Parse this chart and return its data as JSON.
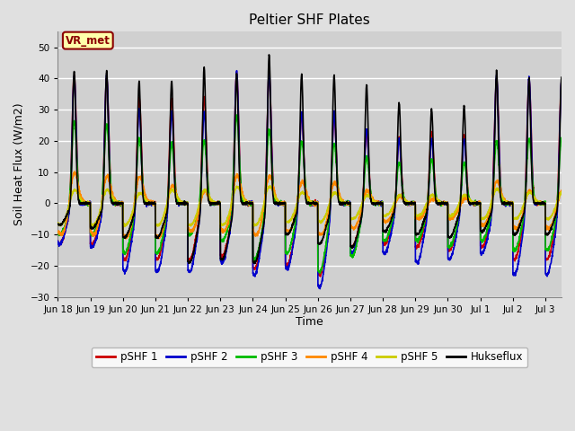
{
  "title": "Peltier SHF Plates",
  "xlabel": "Time",
  "ylabel": "Soil Heat Flux (W/m2)",
  "ylim": [
    -30,
    55
  ],
  "background_color": "#e0e0e0",
  "plot_bg_color": "#d0d0d0",
  "grid_color": "white",
  "vr_met_label": "VR_met",
  "series": {
    "pSHF 1": {
      "color": "#cc0000",
      "lw": 1.2
    },
    "pSHF 2": {
      "color": "#0000cc",
      "lw": 1.2
    },
    "pSHF 3": {
      "color": "#00bb00",
      "lw": 1.2
    },
    "pSHF 4": {
      "color": "#ff8800",
      "lw": 1.2
    },
    "pSHF 5": {
      "color": "#cccc00",
      "lw": 1.2
    },
    "Hukseflux": {
      "color": "#000000",
      "lw": 1.2
    }
  },
  "x_tick_labels": [
    "Jun 18",
    "Jun 19",
    "Jun 20",
    "Jun 21",
    "Jun 22",
    "Jun 23",
    "Jun 24",
    "Jun 25",
    "Jun 26",
    "Jun 27",
    "Jun 28",
    "Jun 29",
    "Jun 30",
    "Jul 1",
    "Jul 2",
    "Jul 3"
  ],
  "n_days": 15.5,
  "yticks": [
    -30,
    -20,
    -10,
    0,
    10,
    20,
    30,
    40,
    50
  ]
}
